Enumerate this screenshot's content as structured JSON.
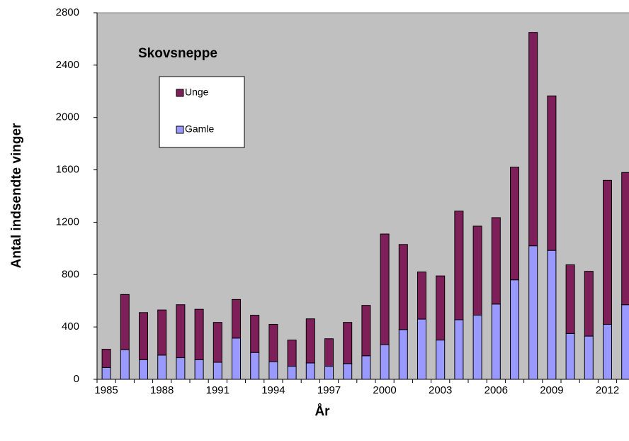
{
  "chart_data": {
    "type": "stacked_bar",
    "title": "Skovsneppe",
    "x_label": "År",
    "y_label": "Antal indsendte vinger",
    "categories": [
      "1985",
      null,
      null,
      "1988",
      null,
      null,
      "1991",
      null,
      null,
      "1994",
      null,
      null,
      "1997",
      null,
      null,
      "2000",
      null,
      null,
      "2003",
      null,
      null,
      "2006",
      null,
      null,
      "2009",
      null,
      null,
      "2012",
      null
    ],
    "series": [
      {
        "name": "Unge",
        "color": "#7f1f5a",
        "values": [
          140,
          423,
          360,
          345,
          405,
          385,
          305,
          295,
          285,
          285,
          200,
          337,
          210,
          315,
          385,
          845,
          650,
          360,
          490,
          830,
          680,
          660,
          860,
          1630,
          1180,
          525,
          495,
          1100,
          1010
        ]
      },
      {
        "name": "Gamle",
        "color": "#9999ff",
        "values": [
          90,
          225,
          150,
          185,
          165,
          150,
          130,
          315,
          205,
          135,
          100,
          125,
          100,
          120,
          180,
          265,
          380,
          460,
          300,
          455,
          490,
          575,
          760,
          1020,
          985,
          350,
          330,
          420,
          570
        ]
      }
    ],
    "ylim": [
      0,
      2800
    ],
    "yticks": [
      0,
      400,
      800,
      1200,
      1600,
      2000,
      2400,
      2800
    ],
    "background": "#c0c0c0",
    "grid": false
  }
}
